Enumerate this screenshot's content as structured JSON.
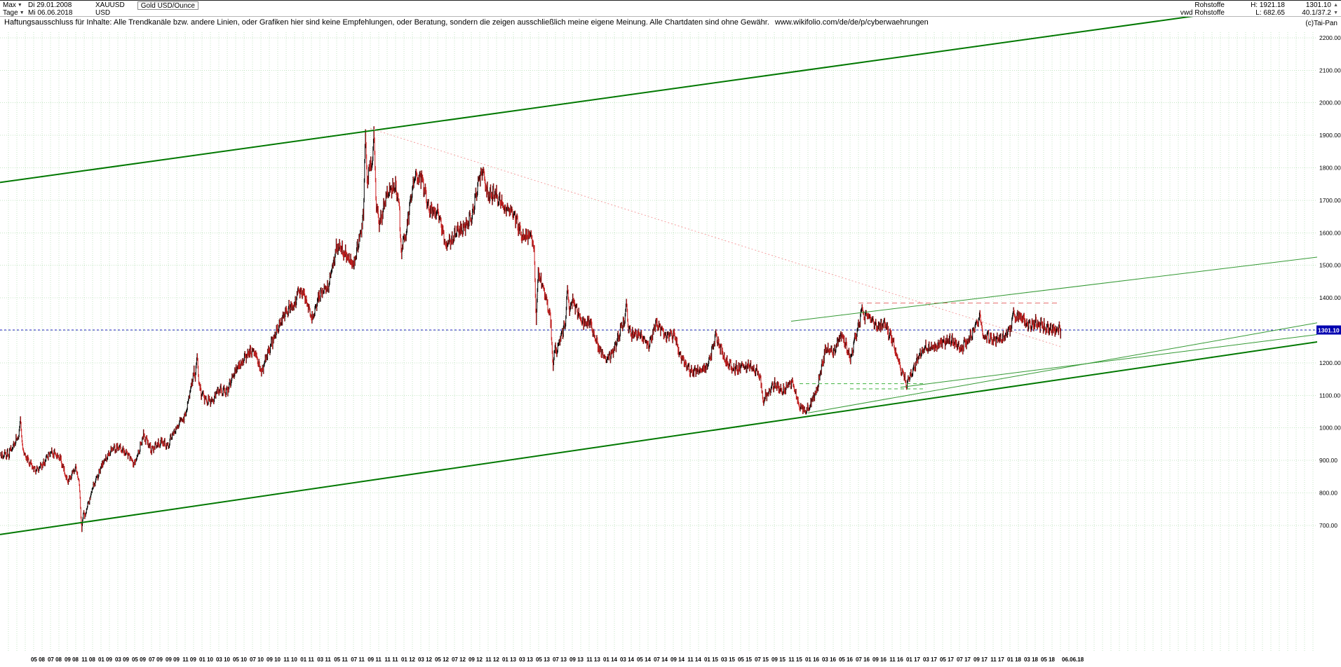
{
  "header": {
    "range_selector": "Max",
    "start_date": "Di 29.01.2008",
    "symbol": "XAUUSD",
    "instrument": "Gold USD/Ounce",
    "period_selector": "Tage",
    "end_date": "Mi 06.06.2018",
    "currency": "USD",
    "group_row1": "Rohstoffe",
    "high_label": "H: 1921.18",
    "last": "1301.10",
    "group_row2": "vwd Rohstoffe",
    "low_label": "L: 682.65",
    "stat": "40.1/37.2",
    "copyright": "(c)Tai-Pan"
  },
  "disclaimer": {
    "text": "Haftungsausschluss für Inhalte: Alle Trendkanäle bzw. andere Linien, oder Grafiken hier sind keine Empfehlungen, oder Beratung, sondern die zeigen ausschließlich meine eigene Meinung. Alle Chartdaten sind ohne Gewähr.",
    "url": "www.wikifolio.com/de/de/p/cyberwaehrungen"
  },
  "chart_data": {
    "type": "candlestick",
    "title": "Gold USD/Ounce (XAUUSD), Tage, 29.01.2008 - 06.06.2018",
    "xlabel": "",
    "ylabel": "USD",
    "ylim": [
      700,
      2200
    ],
    "grid": true,
    "legend": false,
    "last_price": 1301.1,
    "high": 1921.18,
    "low": 682.65,
    "grid_color": "#c4e6c4",
    "candle_up_color": "#000000",
    "candle_down_color": "#cc2020",
    "price_line_color": "#2020c0",
    "badge_color": "#0000b0",
    "y_ticks": [
      700,
      800,
      900,
      1000,
      1100,
      1200,
      1300,
      1400,
      1500,
      1600,
      1700,
      1800,
      1900,
      2000,
      2100,
      2200
    ],
    "x_ticks": [
      {
        "m": "2008-05",
        "t": "05 08"
      },
      {
        "m": "2008-07",
        "t": "07 08"
      },
      {
        "m": "2008-09",
        "t": "09 08"
      },
      {
        "m": "2008-11",
        "t": "11 08"
      },
      {
        "m": "2009-01",
        "t": "01 09"
      },
      {
        "m": "2009-03",
        "t": "03 09"
      },
      {
        "m": "2009-05",
        "t": "05 09"
      },
      {
        "m": "2009-07",
        "t": "07 09"
      },
      {
        "m": "2009-09",
        "t": "09 09"
      },
      {
        "m": "2009-11",
        "t": "11 09"
      },
      {
        "m": "2010-01",
        "t": "01 10"
      },
      {
        "m": "2010-03",
        "t": "03 10"
      },
      {
        "m": "2010-05",
        "t": "05 10"
      },
      {
        "m": "2010-07",
        "t": "07 10"
      },
      {
        "m": "2010-09",
        "t": "09 10"
      },
      {
        "m": "2010-11",
        "t": "11 10"
      },
      {
        "m": "2011-01",
        "t": "01 11"
      },
      {
        "m": "2011-03",
        "t": "03 11"
      },
      {
        "m": "2011-05",
        "t": "05 11"
      },
      {
        "m": "2011-07",
        "t": "07 11"
      },
      {
        "m": "2011-09",
        "t": "09 11"
      },
      {
        "m": "2011-11",
        "t": "11 11"
      },
      {
        "m": "2012-01",
        "t": "01 12"
      },
      {
        "m": "2012-03",
        "t": "03 12"
      },
      {
        "m": "2012-05",
        "t": "05 12"
      },
      {
        "m": "2012-07",
        "t": "07 12"
      },
      {
        "m": "2012-09",
        "t": "09 12"
      },
      {
        "m": "2012-11",
        "t": "11 12"
      },
      {
        "m": "2013-01",
        "t": "01 13"
      },
      {
        "m": "2013-03",
        "t": "03 13"
      },
      {
        "m": "2013-05",
        "t": "05 13"
      },
      {
        "m": "2013-07",
        "t": "07 13"
      },
      {
        "m": "2013-09",
        "t": "09 13"
      },
      {
        "m": "2013-11",
        "t": "11 13"
      },
      {
        "m": "2014-01",
        "t": "01 14"
      },
      {
        "m": "2014-03",
        "t": "03 14"
      },
      {
        "m": "2014-05",
        "t": "05 14"
      },
      {
        "m": "2014-07",
        "t": "07 14"
      },
      {
        "m": "2014-09",
        "t": "09 14"
      },
      {
        "m": "2014-11",
        "t": "11 14"
      },
      {
        "m": "2015-01",
        "t": "01 15"
      },
      {
        "m": "2015-03",
        "t": "03 15"
      },
      {
        "m": "2015-05",
        "t": "05 15"
      },
      {
        "m": "2015-07",
        "t": "07 15"
      },
      {
        "m": "2015-09",
        "t": "09 15"
      },
      {
        "m": "2015-11",
        "t": "11 15"
      },
      {
        "m": "2016-01",
        "t": "01 16"
      },
      {
        "m": "2016-03",
        "t": "03 16"
      },
      {
        "m": "2016-05",
        "t": "05 16"
      },
      {
        "m": "2016-07",
        "t": "07 16"
      },
      {
        "m": "2016-09",
        "t": "09 16"
      },
      {
        "m": "2016-11",
        "t": "11 16"
      },
      {
        "m": "2017-01",
        "t": "01 17"
      },
      {
        "m": "2017-03",
        "t": "03 17"
      },
      {
        "m": "2017-05",
        "t": "05 17"
      },
      {
        "m": "2017-07",
        "t": "07 17"
      },
      {
        "m": "2017-09",
        "t": "09 17"
      },
      {
        "m": "2017-11",
        "t": "11 17"
      },
      {
        "m": "2018-01",
        "t": "01 18"
      },
      {
        "m": "2018-03",
        "t": "03 18"
      },
      {
        "m": "2018-05",
        "t": "05 18"
      }
    ],
    "x_end_tick": {
      "m": "2018-06",
      "t": "06.06.18"
    },
    "start_month": "2008-01",
    "monthly_close": [
      920,
      972,
      916,
      871,
      886,
      928,
      914,
      833,
      884,
      725,
      816,
      880,
      927,
      942,
      922,
      888,
      978,
      932,
      955,
      951,
      1007,
      1040,
      1175,
      1096,
      1081,
      1116,
      1113,
      1180,
      1214,
      1244,
      1169,
      1248,
      1308,
      1359,
      1386,
      1421,
      1333,
      1411,
      1438,
      1563,
      1536,
      1500,
      1628,
      1826,
      1622,
      1722,
      1746,
      1566,
      1737,
      1771,
      1668,
      1664,
      1558,
      1598,
      1614,
      1648,
      1776,
      1720,
      1714,
      1676,
      1662,
      1580,
      1597,
      1472,
      1388,
      1234,
      1312,
      1394,
      1328,
      1324,
      1253,
      1205,
      1244,
      1326,
      1284,
      1291,
      1250,
      1327,
      1283,
      1287,
      1208,
      1173,
      1175,
      1184,
      1283,
      1213,
      1184,
      1184,
      1190,
      1172,
      1096,
      1134,
      1114,
      1142,
      1064,
      1061,
      1116,
      1238,
      1233,
      1290,
      1212,
      1322,
      1351,
      1309,
      1316,
      1272,
      1174,
      1151,
      1212,
      1249,
      1244,
      1266,
      1269,
      1242,
      1268,
      1321,
      1280,
      1271,
      1274,
      1302,
      1345,
      1318,
      1324,
      1314,
      1299,
      1301.1
    ],
    "month_extremes": {
      "2008-03": {
        "high": 1032
      },
      "2008-10": {
        "low": 682.65
      },
      "2009-12": {
        "high": 1225
      },
      "2010-12": {
        "high": 1430
      },
      "2011-08": {
        "high": 1912
      },
      "2011-09": {
        "high": 1921.18
      },
      "2011-12": {
        "low": 1525
      },
      "2012-02": {
        "high": 1790
      },
      "2012-10": {
        "high": 1796
      },
      "2013-04": {
        "low": 1322
      },
      "2013-06": {
        "low": 1180
      },
      "2013-08": {
        "high": 1434
      },
      "2014-03": {
        "high": 1392
      },
      "2015-07": {
        "low": 1072
      },
      "2015-12": {
        "low": 1046
      },
      "2016-07": {
        "high": 1375
      },
      "2016-12": {
        "low": 1122
      },
      "2017-09": {
        "high": 1357
      },
      "2018-01": {
        "high": 1366
      }
    },
    "trendlines": [
      {
        "name": "channel-upper",
        "from": {
          "date": "2008-01",
          "price": 1755
        },
        "to": {
          "date": "2021-03",
          "price": 2325
        },
        "color": "#007800",
        "width": 2,
        "dash": ""
      },
      {
        "name": "channel-lower",
        "from": {
          "date": "2008-01",
          "price": 672
        },
        "to": {
          "date": "2021-03",
          "price": 1270
        },
        "color": "#007800",
        "width": 2,
        "dash": ""
      },
      {
        "name": "downtrend-dotted",
        "from": {
          "date": "2011-09",
          "price": 1921
        },
        "to": {
          "date": "2018-07",
          "price": 1250
        },
        "color": "#f4a0a0",
        "width": 1,
        "dash": "2,3"
      },
      {
        "name": "resistance-dashed",
        "from": {
          "date": "2016-07",
          "price": 1384
        },
        "to": {
          "date": "2018-07",
          "price": 1384
        },
        "color": "#e87070",
        "width": 1,
        "dash": "7,5"
      },
      {
        "name": "fan-upper-thin",
        "from": {
          "date": "2015-11",
          "price": 1328
        },
        "to": {
          "date": "2021-03",
          "price": 1530
        },
        "color": "#339933",
        "width": 1,
        "dash": ""
      },
      {
        "name": "support-thin",
        "from": {
          "date": "2016-01",
          "price": 1046
        },
        "to": {
          "date": "2021-03",
          "price": 1330
        },
        "color": "#339933",
        "width": 1,
        "dash": ""
      },
      {
        "name": "support2-thin",
        "from": {
          "date": "2016-12",
          "price": 1125
        },
        "to": {
          "date": "2021-03",
          "price": 1292
        },
        "color": "#339933",
        "width": 1,
        "dash": ""
      },
      {
        "name": "level-dashed-1",
        "from": {
          "date": "2015-12",
          "price": 1136
        },
        "to": {
          "date": "2017-03",
          "price": 1136
        },
        "color": "#3db13d",
        "width": 1,
        "dash": "5,4"
      },
      {
        "name": "level-dashed-2",
        "from": {
          "date": "2016-06",
          "price": 1120
        },
        "to": {
          "date": "2017-03",
          "price": 1120
        },
        "color": "#3db13d",
        "width": 1,
        "dash": "5,4"
      }
    ]
  }
}
